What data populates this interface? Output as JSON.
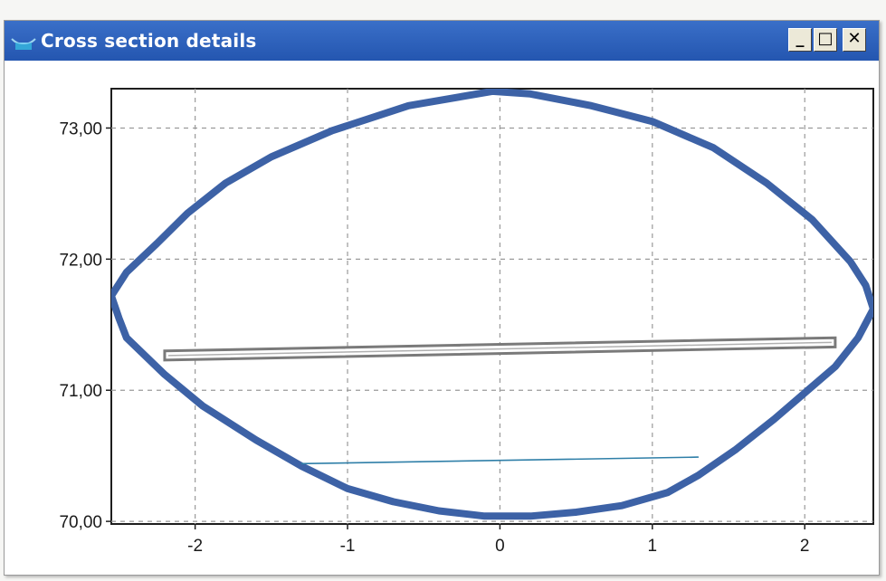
{
  "window": {
    "title": "Cross section details",
    "minimize_glyph": "_",
    "maximize_glyph": "□",
    "close_glyph": "✕",
    "title_icon": "water-channel-icon",
    "titlebar_color": "#2a5cb8"
  },
  "chart_data": {
    "type": "line",
    "title": "",
    "xlabel": "",
    "ylabel": "",
    "xlim": [
      -2.55,
      2.45
    ],
    "ylim": [
      69.98,
      73.3
    ],
    "grid": true,
    "x_ticks": [
      -2,
      -1,
      0,
      1,
      2
    ],
    "x_tick_labels": [
      "-2",
      "-1",
      "0",
      "1",
      "2"
    ],
    "y_ticks": [
      70,
      71,
      72,
      73
    ],
    "y_tick_labels": [
      "70,00",
      "71,00",
      "72,00",
      "73,00"
    ],
    "series": [
      {
        "color": "#3d62a6",
        "x": [
          -0.05,
          -0.6,
          -1.1,
          -1.5,
          -1.8,
          -2.05,
          -2.25,
          -2.45,
          -2.55,
          -2.5,
          -2.45,
          -2.2,
          -1.95,
          -1.6,
          -1.3,
          -1.0,
          -0.7,
          -0.4,
          -0.1,
          0.2,
          0.5,
          0.8,
          1.1,
          1.3,
          1.55,
          1.8,
          2.0,
          2.2,
          2.35,
          2.45,
          2.4,
          2.3,
          2.05,
          1.75,
          1.4,
          1.0,
          0.6,
          0.2,
          -0.05
        ],
        "y": [
          73.28,
          73.17,
          72.98,
          72.78,
          72.58,
          72.35,
          72.12,
          71.9,
          71.72,
          71.55,
          71.4,
          71.12,
          70.88,
          70.62,
          70.42,
          70.25,
          70.15,
          70.08,
          70.04,
          70.04,
          70.07,
          70.12,
          70.22,
          70.35,
          70.55,
          70.78,
          70.98,
          71.18,
          71.4,
          71.62,
          71.8,
          71.98,
          72.3,
          72.58,
          72.85,
          73.05,
          73.17,
          73.26,
          73.28
        ]
      },
      {
        "color": "#2f7fa8",
        "x": [
          -1.3,
          1.3
        ],
        "y": [
          70.44,
          70.49
        ]
      }
    ],
    "bar": {
      "color": "#7a7a7a",
      "x": [
        -2.2,
        2.2
      ],
      "y_left": [
        71.23,
        71.3
      ],
      "y_right": [
        71.33,
        71.4
      ]
    }
  }
}
